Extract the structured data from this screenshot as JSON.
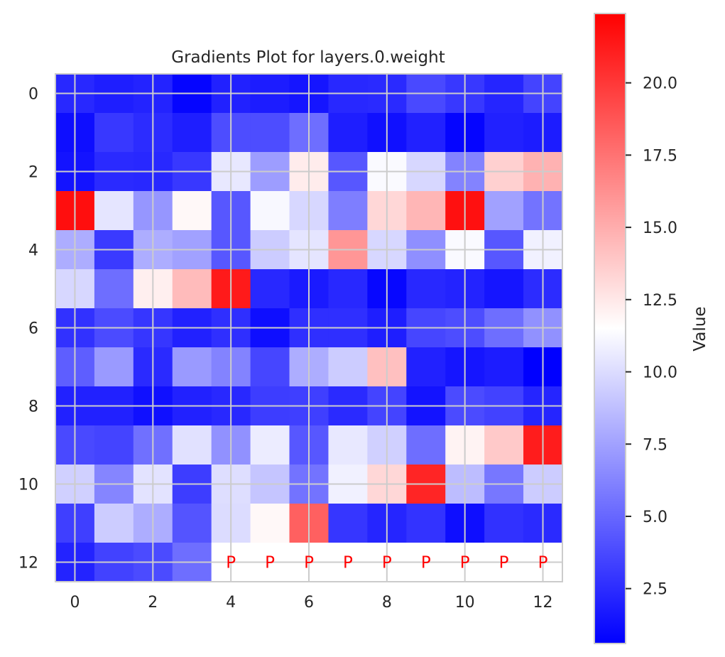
{
  "chart_data": {
    "type": "heatmap",
    "title": "Gradients Plot for layers.0.weight",
    "xlabel": "",
    "ylabel": "",
    "x_ticks": [
      0,
      2,
      4,
      6,
      8,
      10,
      12
    ],
    "y_ticks": [
      0,
      2,
      4,
      6,
      8,
      10,
      12
    ],
    "rows": 13,
    "cols": 13,
    "values": [
      [
        2.3,
        1.9,
        2.1,
        0.8,
        2.0,
        1.8,
        1.5,
        2.3,
        2.4,
        3.7,
        3.0,
        2.2,
        3.5
      ],
      [
        1.2,
        3.0,
        2.5,
        1.9,
        3.9,
        3.9,
        5.3,
        1.9,
        1.3,
        2.0,
        0.8,
        2.0,
        1.8
      ],
      [
        1.4,
        2.4,
        2.3,
        3.0,
        10.5,
        7.3,
        12.3,
        4.3,
        11.3,
        9.8,
        6.2,
        13.5,
        14.8
      ],
      [
        21.8,
        10.4,
        7.0,
        11.8,
        4.3,
        11.2,
        9.8,
        6.0,
        13.2,
        14.6,
        21.7,
        7.5,
        5.5
      ],
      [
        8.0,
        3.1,
        8.0,
        7.5,
        4.3,
        9.3,
        10.4,
        16.0,
        9.8,
        6.7,
        11.3,
        4.3,
        10.9
      ],
      [
        9.8,
        5.3,
        12.2,
        14.4,
        21.3,
        2.3,
        1.7,
        2.3,
        0.9,
        2.3,
        2.1,
        1.5,
        2.5
      ],
      [
        2.7,
        3.8,
        2.9,
        2.0,
        2.6,
        1.2,
        2.6,
        2.6,
        1.9,
        3.6,
        3.9,
        5.3,
        6.8
      ],
      [
        4.6,
        7.2,
        2.4,
        7.2,
        6.2,
        3.6,
        8.0,
        9.3,
        14.2,
        2.0,
        1.5,
        1.8,
        0.6
      ],
      [
        2.0,
        2.0,
        1.3,
        2.0,
        2.3,
        3.2,
        3.3,
        2.4,
        3.5,
        1.4,
        3.8,
        3.4,
        2.2
      ],
      [
        3.7,
        3.5,
        5.4,
        10.2,
        6.8,
        10.7,
        4.3,
        10.5,
        9.5,
        5.3,
        12.0,
        13.8,
        21.2
      ],
      [
        9.5,
        6.3,
        10.3,
        3.2,
        10.1,
        9.0,
        5.5,
        10.9,
        13.2,
        20.8,
        8.7,
        5.7,
        9.3
      ],
      [
        3.3,
        9.3,
        8.0,
        4.2,
        10.0,
        11.8,
        18.3,
        2.9,
        2.2,
        2.8,
        1.2,
        2.7,
        2.4
      ],
      [
        2.1,
        3.4,
        3.8,
        5.3,
        null,
        null,
        null,
        null,
        null,
        null,
        null,
        null,
        null
      ]
    ],
    "padding_marker": "P",
    "padding_marker_color": "#ff0000",
    "colormap": "bwr",
    "colormap_colors": [
      "#0000ff",
      "#ffffff",
      "#ff0000"
    ],
    "vmin": 0.6,
    "vmax": 22.4,
    "colorbar": {
      "label": "Value",
      "ticks": [
        2.5,
        5.0,
        7.5,
        10.0,
        12.5,
        15.0,
        17.5,
        20.0
      ],
      "tick_labels": [
        "2.5",
        "5.0",
        "7.5",
        "10.0",
        "12.5",
        "15.0",
        "17.5",
        "20.0"
      ]
    },
    "grid": true,
    "grid_color": "#cccccc"
  }
}
